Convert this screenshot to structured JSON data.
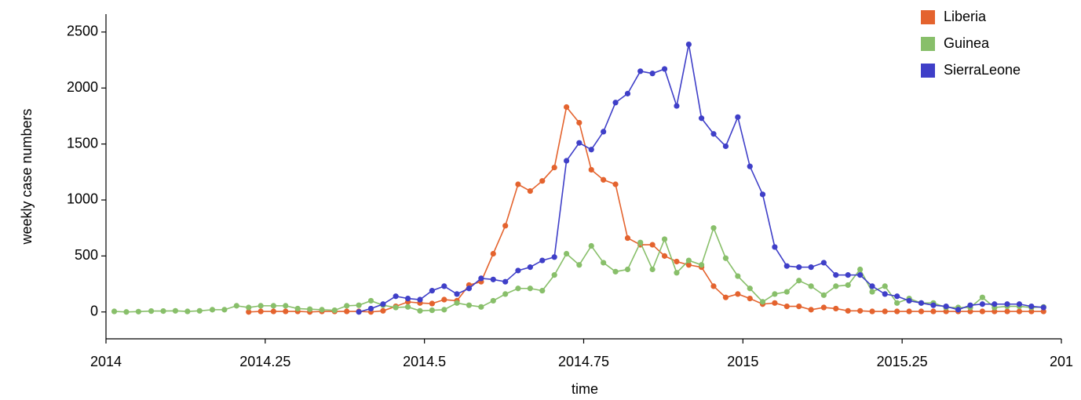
{
  "chart_data": {
    "type": "line",
    "x_label": "time",
    "y_label": "weekly case numbers",
    "xlim": [
      2014,
      2015.5
    ],
    "xticks": [
      2014,
      2014.25,
      2014.5,
      2014.75,
      2015,
      2015.25,
      {
        "value": 2015.5,
        "label": "201"
      }
    ],
    "ylim": [
      -240,
      2660
    ],
    "yticks": [
      0,
      500,
      1000,
      1500,
      2000,
      2500
    ],
    "legend": "top-right",
    "x": [
      2014.013,
      2014.032,
      2014.051,
      2014.071,
      2014.09,
      2014.109,
      2014.128,
      2014.147,
      2014.167,
      2014.186,
      2014.205,
      2014.224,
      2014.243,
      2014.263,
      2014.282,
      2014.301,
      2014.32,
      2014.339,
      2014.359,
      2014.378,
      2014.397,
      2014.416,
      2014.435,
      2014.455,
      2014.474,
      2014.493,
      2014.512,
      2014.531,
      2014.551,
      2014.57,
      2014.589,
      2014.608,
      2014.627,
      2014.647,
      2014.666,
      2014.685,
      2014.704,
      2014.723,
      2014.743,
      2014.762,
      2014.781,
      2014.8,
      2014.819,
      2014.839,
      2014.858,
      2014.877,
      2014.896,
      2014.915,
      2014.935,
      2014.954,
      2014.973,
      2014.992,
      2015.011,
      2015.031,
      2015.05,
      2015.069,
      2015.088,
      2015.107,
      2015.127,
      2015.146,
      2015.165,
      2015.184,
      2015.203,
      2015.223,
      2015.242,
      2015.261,
      2015.28,
      2015.299,
      2015.319,
      2015.338,
      2015.357,
      2015.376,
      2015.395,
      2015.415,
      2015.434,
      2015.453,
      2015.472
    ],
    "series": [
      {
        "name": "Liberia",
        "color": "#e4632e",
        "values": [
          null,
          null,
          null,
          null,
          null,
          null,
          null,
          null,
          null,
          null,
          null,
          0,
          5,
          5,
          5,
          5,
          0,
          5,
          5,
          5,
          5,
          0,
          10,
          50,
          90,
          80,
          75,
          110,
          100,
          240,
          270,
          520,
          770,
          1140,
          1080,
          1170,
          1290,
          1830,
          1690,
          1270,
          1180,
          1140,
          660,
          600,
          600,
          500,
          450,
          420,
          400,
          230,
          130,
          160,
          120,
          70,
          80,
          50,
          50,
          20,
          40,
          30,
          10,
          10,
          5,
          5,
          5,
          5,
          5,
          5,
          5,
          5,
          5,
          5,
          5,
          5,
          5,
          5,
          5
        ]
      },
      {
        "name": "Guinea",
        "color": "#88bf6a",
        "values": [
          5,
          0,
          3,
          8,
          8,
          10,
          5,
          10,
          20,
          20,
          55,
          40,
          55,
          55,
          55,
          30,
          25,
          20,
          15,
          55,
          60,
          100,
          60,
          40,
          45,
          10,
          15,
          20,
          80,
          60,
          45,
          100,
          160,
          210,
          210,
          190,
          330,
          520,
          420,
          590,
          440,
          360,
          380,
          620,
          380,
          650,
          350,
          460,
          420,
          750,
          480,
          320,
          210,
          90,
          160,
          180,
          280,
          230,
          150,
          230,
          240,
          380,
          180,
          230,
          80,
          120,
          80,
          80,
          40,
          40,
          40,
          130,
          40,
          50,
          50,
          40,
          45
        ]
      },
      {
        "name": "SierraLeone",
        "color": "#3f3fc8",
        "values": [
          null,
          null,
          null,
          null,
          null,
          null,
          null,
          null,
          null,
          null,
          null,
          null,
          null,
          null,
          null,
          null,
          null,
          null,
          null,
          null,
          0,
          30,
          70,
          140,
          120,
          110,
          190,
          230,
          160,
          210,
          300,
          290,
          270,
          370,
          400,
          460,
          490,
          1350,
          1510,
          1450,
          1610,
          1870,
          1950,
          2150,
          2130,
          2170,
          1840,
          2390,
          1730,
          1590,
          1480,
          1740,
          1300,
          1050,
          580,
          410,
          400,
          400,
          440,
          330,
          330,
          330,
          230,
          160,
          140,
          100,
          80,
          60,
          50,
          20,
          60,
          70,
          70,
          70,
          70,
          50,
          40
        ]
      }
    ]
  }
}
